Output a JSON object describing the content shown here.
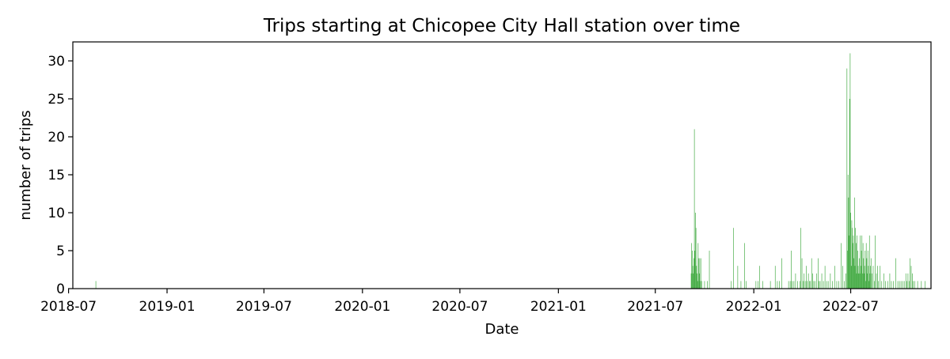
{
  "chart_data": {
    "type": "bar",
    "title": "Trips starting at Chicopee City Hall station over time",
    "xlabel": "Date",
    "ylabel": "number of trips",
    "x_axis_type": "date",
    "xlim": [
      "2018-07-09",
      "2022-11-28"
    ],
    "ylim": [
      0,
      32.5
    ],
    "x_ticks": [
      "2018-07",
      "2019-01",
      "2019-07",
      "2020-01",
      "2020-07",
      "2021-01",
      "2021-07",
      "2022-01",
      "2022-07"
    ],
    "y_ticks": [
      0,
      5,
      10,
      15,
      20,
      25,
      30
    ],
    "grid": false,
    "legend": "none",
    "bar_color": "#2ca02c",
    "series": [
      {
        "points": [
          [
            "2018-08-21",
            1
          ],
          [
            "2021-09-06",
            2
          ],
          [
            "2021-09-07",
            6
          ],
          [
            "2021-09-08",
            5
          ],
          [
            "2021-09-09",
            3
          ],
          [
            "2021-09-10",
            2
          ],
          [
            "2021-09-11",
            4
          ],
          [
            "2021-09-12",
            21
          ],
          [
            "2021-09-13",
            5
          ],
          [
            "2021-09-14",
            10
          ],
          [
            "2021-09-15",
            8
          ],
          [
            "2021-09-16",
            3
          ],
          [
            "2021-09-17",
            2
          ],
          [
            "2021-09-18",
            1
          ],
          [
            "2021-09-19",
            6
          ],
          [
            "2021-09-20",
            4
          ],
          [
            "2021-09-21",
            2
          ],
          [
            "2021-09-22",
            4
          ],
          [
            "2021-09-23",
            1
          ],
          [
            "2021-09-24",
            4
          ],
          [
            "2021-09-26",
            1
          ],
          [
            "2021-10-01",
            1
          ],
          [
            "2021-10-06",
            1
          ],
          [
            "2021-10-10",
            5
          ],
          [
            "2021-11-20",
            1
          ],
          [
            "2021-11-24",
            8
          ],
          [
            "2021-12-02",
            3
          ],
          [
            "2021-12-08",
            1
          ],
          [
            "2021-12-15",
            6
          ],
          [
            "2021-12-18",
            1
          ],
          [
            "2022-01-05",
            1
          ],
          [
            "2022-01-09",
            1
          ],
          [
            "2022-01-12",
            3
          ],
          [
            "2022-01-18",
            1
          ],
          [
            "2022-02-01",
            1
          ],
          [
            "2022-02-10",
            3
          ],
          [
            "2022-02-14",
            1
          ],
          [
            "2022-02-18",
            1
          ],
          [
            "2022-02-22",
            4
          ],
          [
            "2022-03-07",
            1
          ],
          [
            "2022-03-10",
            1
          ],
          [
            "2022-03-12",
            5
          ],
          [
            "2022-03-14",
            1
          ],
          [
            "2022-03-17",
            1
          ],
          [
            "2022-03-20",
            2
          ],
          [
            "2022-03-24",
            1
          ],
          [
            "2022-03-28",
            1
          ],
          [
            "2022-03-30",
            8
          ],
          [
            "2022-04-01",
            4
          ],
          [
            "2022-04-03",
            1
          ],
          [
            "2022-04-05",
            2
          ],
          [
            "2022-04-07",
            1
          ],
          [
            "2022-04-09",
            3
          ],
          [
            "2022-04-11",
            1
          ],
          [
            "2022-04-13",
            2
          ],
          [
            "2022-04-15",
            1
          ],
          [
            "2022-04-17",
            1
          ],
          [
            "2022-04-19",
            4
          ],
          [
            "2022-04-21",
            2
          ],
          [
            "2022-04-23",
            1
          ],
          [
            "2022-04-25",
            1
          ],
          [
            "2022-04-28",
            2
          ],
          [
            "2022-05-01",
            4
          ],
          [
            "2022-05-03",
            1
          ],
          [
            "2022-05-05",
            1
          ],
          [
            "2022-05-08",
            2
          ],
          [
            "2022-05-11",
            1
          ],
          [
            "2022-05-14",
            3
          ],
          [
            "2022-05-17",
            1
          ],
          [
            "2022-05-20",
            1
          ],
          [
            "2022-05-24",
            2
          ],
          [
            "2022-05-28",
            1
          ],
          [
            "2022-06-01",
            3
          ],
          [
            "2022-06-05",
            1
          ],
          [
            "2022-06-09",
            1
          ],
          [
            "2022-06-13",
            6
          ],
          [
            "2022-06-16",
            3
          ],
          [
            "2022-06-19",
            1
          ],
          [
            "2022-06-22",
            2
          ],
          [
            "2022-06-24",
            29
          ],
          [
            "2022-06-25",
            5
          ],
          [
            "2022-06-26",
            15
          ],
          [
            "2022-06-27",
            12
          ],
          [
            "2022-06-28",
            7
          ],
          [
            "2022-06-29",
            25
          ],
          [
            "2022-06-30",
            31
          ],
          [
            "2022-07-01",
            10
          ],
          [
            "2022-07-02",
            3
          ],
          [
            "2022-07-03",
            9
          ],
          [
            "2022-07-04",
            8
          ],
          [
            "2022-07-05",
            6
          ],
          [
            "2022-07-06",
            7
          ],
          [
            "2022-07-07",
            4
          ],
          [
            "2022-07-08",
            12
          ],
          [
            "2022-07-09",
            3
          ],
          [
            "2022-07-10",
            8
          ],
          [
            "2022-07-11",
            6
          ],
          [
            "2022-07-12",
            2
          ],
          [
            "2022-07-13",
            7
          ],
          [
            "2022-07-14",
            5
          ],
          [
            "2022-07-15",
            3
          ],
          [
            "2022-07-16",
            2
          ],
          [
            "2022-07-17",
            4
          ],
          [
            "2022-07-18",
            2
          ],
          [
            "2022-07-19",
            7
          ],
          [
            "2022-07-20",
            3
          ],
          [
            "2022-07-21",
            5
          ],
          [
            "2022-07-22",
            7
          ],
          [
            "2022-07-23",
            2
          ],
          [
            "2022-07-24",
            6
          ],
          [
            "2022-07-25",
            4
          ],
          [
            "2022-07-26",
            2
          ],
          [
            "2022-07-27",
            3
          ],
          [
            "2022-07-28",
            5
          ],
          [
            "2022-07-29",
            1
          ],
          [
            "2022-07-30",
            6
          ],
          [
            "2022-07-31",
            4
          ],
          [
            "2022-08-01",
            2
          ],
          [
            "2022-08-02",
            5
          ],
          [
            "2022-08-03",
            3
          ],
          [
            "2022-08-04",
            1
          ],
          [
            "2022-08-05",
            7
          ],
          [
            "2022-08-06",
            2
          ],
          [
            "2022-08-07",
            3
          ],
          [
            "2022-08-08",
            4
          ],
          [
            "2022-08-10",
            2
          ],
          [
            "2022-08-12",
            3
          ],
          [
            "2022-08-14",
            1
          ],
          [
            "2022-08-16",
            7
          ],
          [
            "2022-08-18",
            2
          ],
          [
            "2022-08-20",
            3
          ],
          [
            "2022-08-22",
            1
          ],
          [
            "2022-08-25",
            3
          ],
          [
            "2022-08-28",
            1
          ],
          [
            "2022-09-01",
            2
          ],
          [
            "2022-09-04",
            1
          ],
          [
            "2022-09-08",
            1
          ],
          [
            "2022-09-12",
            2
          ],
          [
            "2022-09-15",
            1
          ],
          [
            "2022-09-19",
            1
          ],
          [
            "2022-09-23",
            4
          ],
          [
            "2022-09-27",
            1
          ],
          [
            "2022-09-30",
            1
          ],
          [
            "2022-10-03",
            1
          ],
          [
            "2022-10-06",
            1
          ],
          [
            "2022-10-09",
            1
          ],
          [
            "2022-10-12",
            2
          ],
          [
            "2022-10-14",
            1
          ],
          [
            "2022-10-16",
            2
          ],
          [
            "2022-10-18",
            1
          ],
          [
            "2022-10-20",
            4
          ],
          [
            "2022-10-22",
            3
          ],
          [
            "2022-10-24",
            2
          ],
          [
            "2022-10-26",
            1
          ],
          [
            "2022-10-29",
            1
          ],
          [
            "2022-11-03",
            1
          ],
          [
            "2022-11-10",
            1
          ],
          [
            "2022-11-17",
            1
          ]
        ]
      }
    ]
  }
}
